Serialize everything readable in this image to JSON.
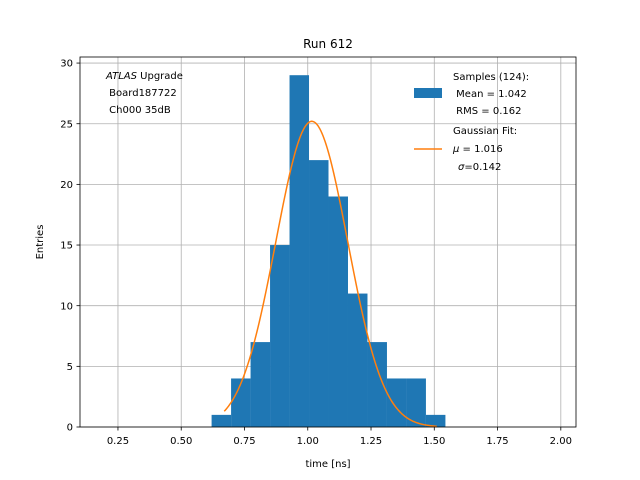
{
  "chart_data": {
    "type": "bar",
    "title": "Run 612",
    "xlabel": "time [ns]",
    "ylabel": "Entries",
    "xlim": [
      0.1,
      2.06
    ],
    "ylim": [
      0,
      30.5
    ],
    "xticks": [
      0.25,
      0.5,
      0.75,
      1.0,
      1.25,
      1.5,
      1.75,
      2.0
    ],
    "xtick_labels": [
      "0.25",
      "0.50",
      "0.75",
      "1.00",
      "1.25",
      "1.50",
      "1.75",
      "2.00"
    ],
    "yticks": [
      0,
      5,
      10,
      15,
      20,
      25,
      30
    ],
    "ytick_labels": [
      "0",
      "5",
      "10",
      "15",
      "20",
      "25",
      "30"
    ],
    "grid": true,
    "legend_position": "top-right",
    "annotation": {
      "italic": "ATLAS",
      "line1_rest": " Upgrade",
      "line2": " Board187722",
      "line3": " Ch000 35dB"
    },
    "histogram": {
      "name": "Samples (124):",
      "name_line2": " Mean = 1.042",
      "name_line3": " RMS = 0.162",
      "color": "#1f77b4",
      "bin_edges": [
        0.62,
        0.697,
        0.774,
        0.851,
        0.928,
        1.005,
        1.082,
        1.159,
        1.236,
        1.313,
        1.39,
        1.467,
        1.544
      ],
      "counts": [
        1,
        4,
        7,
        15,
        29,
        22,
        19,
        11,
        7,
        4,
        4,
        1
      ]
    },
    "fit": {
      "name": "Gaussian Fit:",
      "name_line2_symbol": "μ",
      "name_line2_rest": " = 1.016",
      "name_line3_symbol": "σ",
      "name_line3_rest": "=0.142",
      "color": "#ff7f0e",
      "mu": 1.016,
      "sigma": 0.142,
      "amplitude": 25.2,
      "x_range": [
        0.67,
        1.51
      ]
    }
  }
}
